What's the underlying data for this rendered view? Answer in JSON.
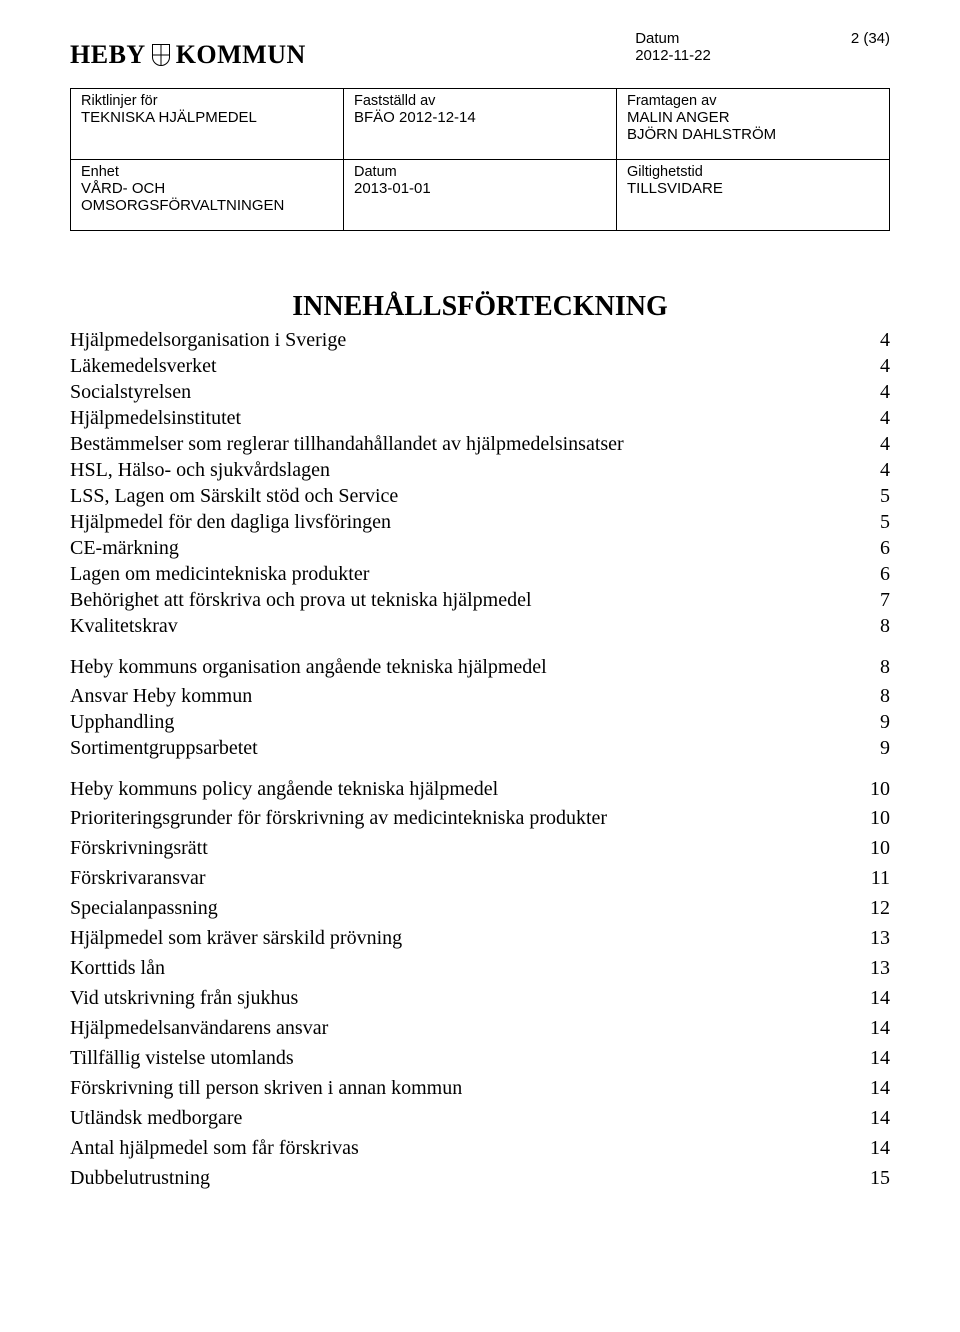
{
  "header": {
    "logo_heby": "HEBY",
    "logo_kommun": "KOMMUN",
    "datum_label": "Datum",
    "datum_value": "2012-11-22",
    "page_indicator": "2 (34)"
  },
  "meta": {
    "row1": {
      "c1_label": "Riktlinjer för",
      "c1_value": "TEKNISKA HJÄLPMEDEL",
      "c2_label": "Fastställd av",
      "c2_value": "BFÄO 2012-12-14",
      "c3_label": "Framtagen av",
      "c3_value1": "MALIN ANGER",
      "c3_value2": "BJÖRN DAHLSTRÖM"
    },
    "row2": {
      "c1_label": "Enhet",
      "c1_value1": "VÅRD- OCH",
      "c1_value2": "OMSORGSFÖRVALTNINGEN",
      "c2_label": "Datum",
      "c2_value": "2013-01-01",
      "c3_label": "Giltighetstid",
      "c3_value": "TILLSVIDARE"
    }
  },
  "toc": {
    "title": "INNEHÅLLSFÖRTECKNING",
    "entries": [
      {
        "type": "l1",
        "text": "Hjälpmedelsorganisation i Sverige",
        "page": "4"
      },
      {
        "type": "l1",
        "text": "Läkemedelsverket",
        "page": "4"
      },
      {
        "type": "l1",
        "text": "Socialstyrelsen",
        "page": "4"
      },
      {
        "type": "l1",
        "text": "Hjälpmedelsinstitutet",
        "page": "4"
      },
      {
        "type": "l1",
        "text": "Bestämmelser som reglerar tillhandahållandet av hjälpmedelsinsatser",
        "page": "4"
      },
      {
        "type": "l1",
        "text": "HSL, Hälso- och sjukvårdslagen",
        "page": "4"
      },
      {
        "type": "l1",
        "text": "LSS, Lagen om Särskilt stöd och Service",
        "page": "5"
      },
      {
        "type": "l1",
        "text": "Hjälpmedel för den dagliga livsföringen",
        "page": "5"
      },
      {
        "type": "l1",
        "text": "CE-märkning",
        "page": "6"
      },
      {
        "type": "l1",
        "text": "Lagen om medicintekniska produkter",
        "page": "6"
      },
      {
        "type": "l1",
        "text": "Behörighet att förskriva och prova ut tekniska hjälpmedel",
        "page": "7"
      },
      {
        "type": "l1",
        "text": "Kvalitetskrav",
        "page": "8"
      },
      {
        "type": "section",
        "text": "Heby kommuns organisation angående tekniska hjälpmedel",
        "page": "8"
      },
      {
        "type": "l1",
        "text": "Ansvar Heby kommun",
        "page": "8"
      },
      {
        "type": "l1",
        "text": "Upphandling",
        "page": "9"
      },
      {
        "type": "l1",
        "text": "Sortimentgruppsarbetet",
        "page": "9"
      },
      {
        "type": "section",
        "text": "Heby kommuns policy angående tekniska hjälpmedel",
        "page": "10"
      },
      {
        "type": "l2",
        "text": "Prioriteringsgrunder för förskrivning av medicintekniska produkter",
        "page": "10"
      },
      {
        "type": "l2",
        "text": "Förskrivningsrätt",
        "page": "10"
      },
      {
        "type": "l2",
        "text": "Förskrivaransvar",
        "page": "11"
      },
      {
        "type": "l2",
        "text": "Specialanpassning",
        "page": "12"
      },
      {
        "type": "l2",
        "text": "Hjälpmedel som kräver särskild prövning",
        "page": "13"
      },
      {
        "type": "l2",
        "text": "Korttids lån",
        "page": "13"
      },
      {
        "type": "l2",
        "text": "Vid utskrivning från sjukhus",
        "page": "14"
      },
      {
        "type": "l2",
        "text": "Hjälpmedelsanvändarens ansvar",
        "page": "14"
      },
      {
        "type": "l2",
        "text": "Tillfällig vistelse utomlands",
        "page": "14"
      },
      {
        "type": "l2",
        "text": "Förskrivning till person skriven i annan kommun",
        "page": "14"
      },
      {
        "type": "l2",
        "text": "Utländsk medborgare",
        "page": "14"
      },
      {
        "type": "l2",
        "text": "Antal hjälpmedel som får förskrivas",
        "page": "14"
      },
      {
        "type": "l2",
        "text": "Dubbelutrustning",
        "page": "15"
      }
    ]
  }
}
